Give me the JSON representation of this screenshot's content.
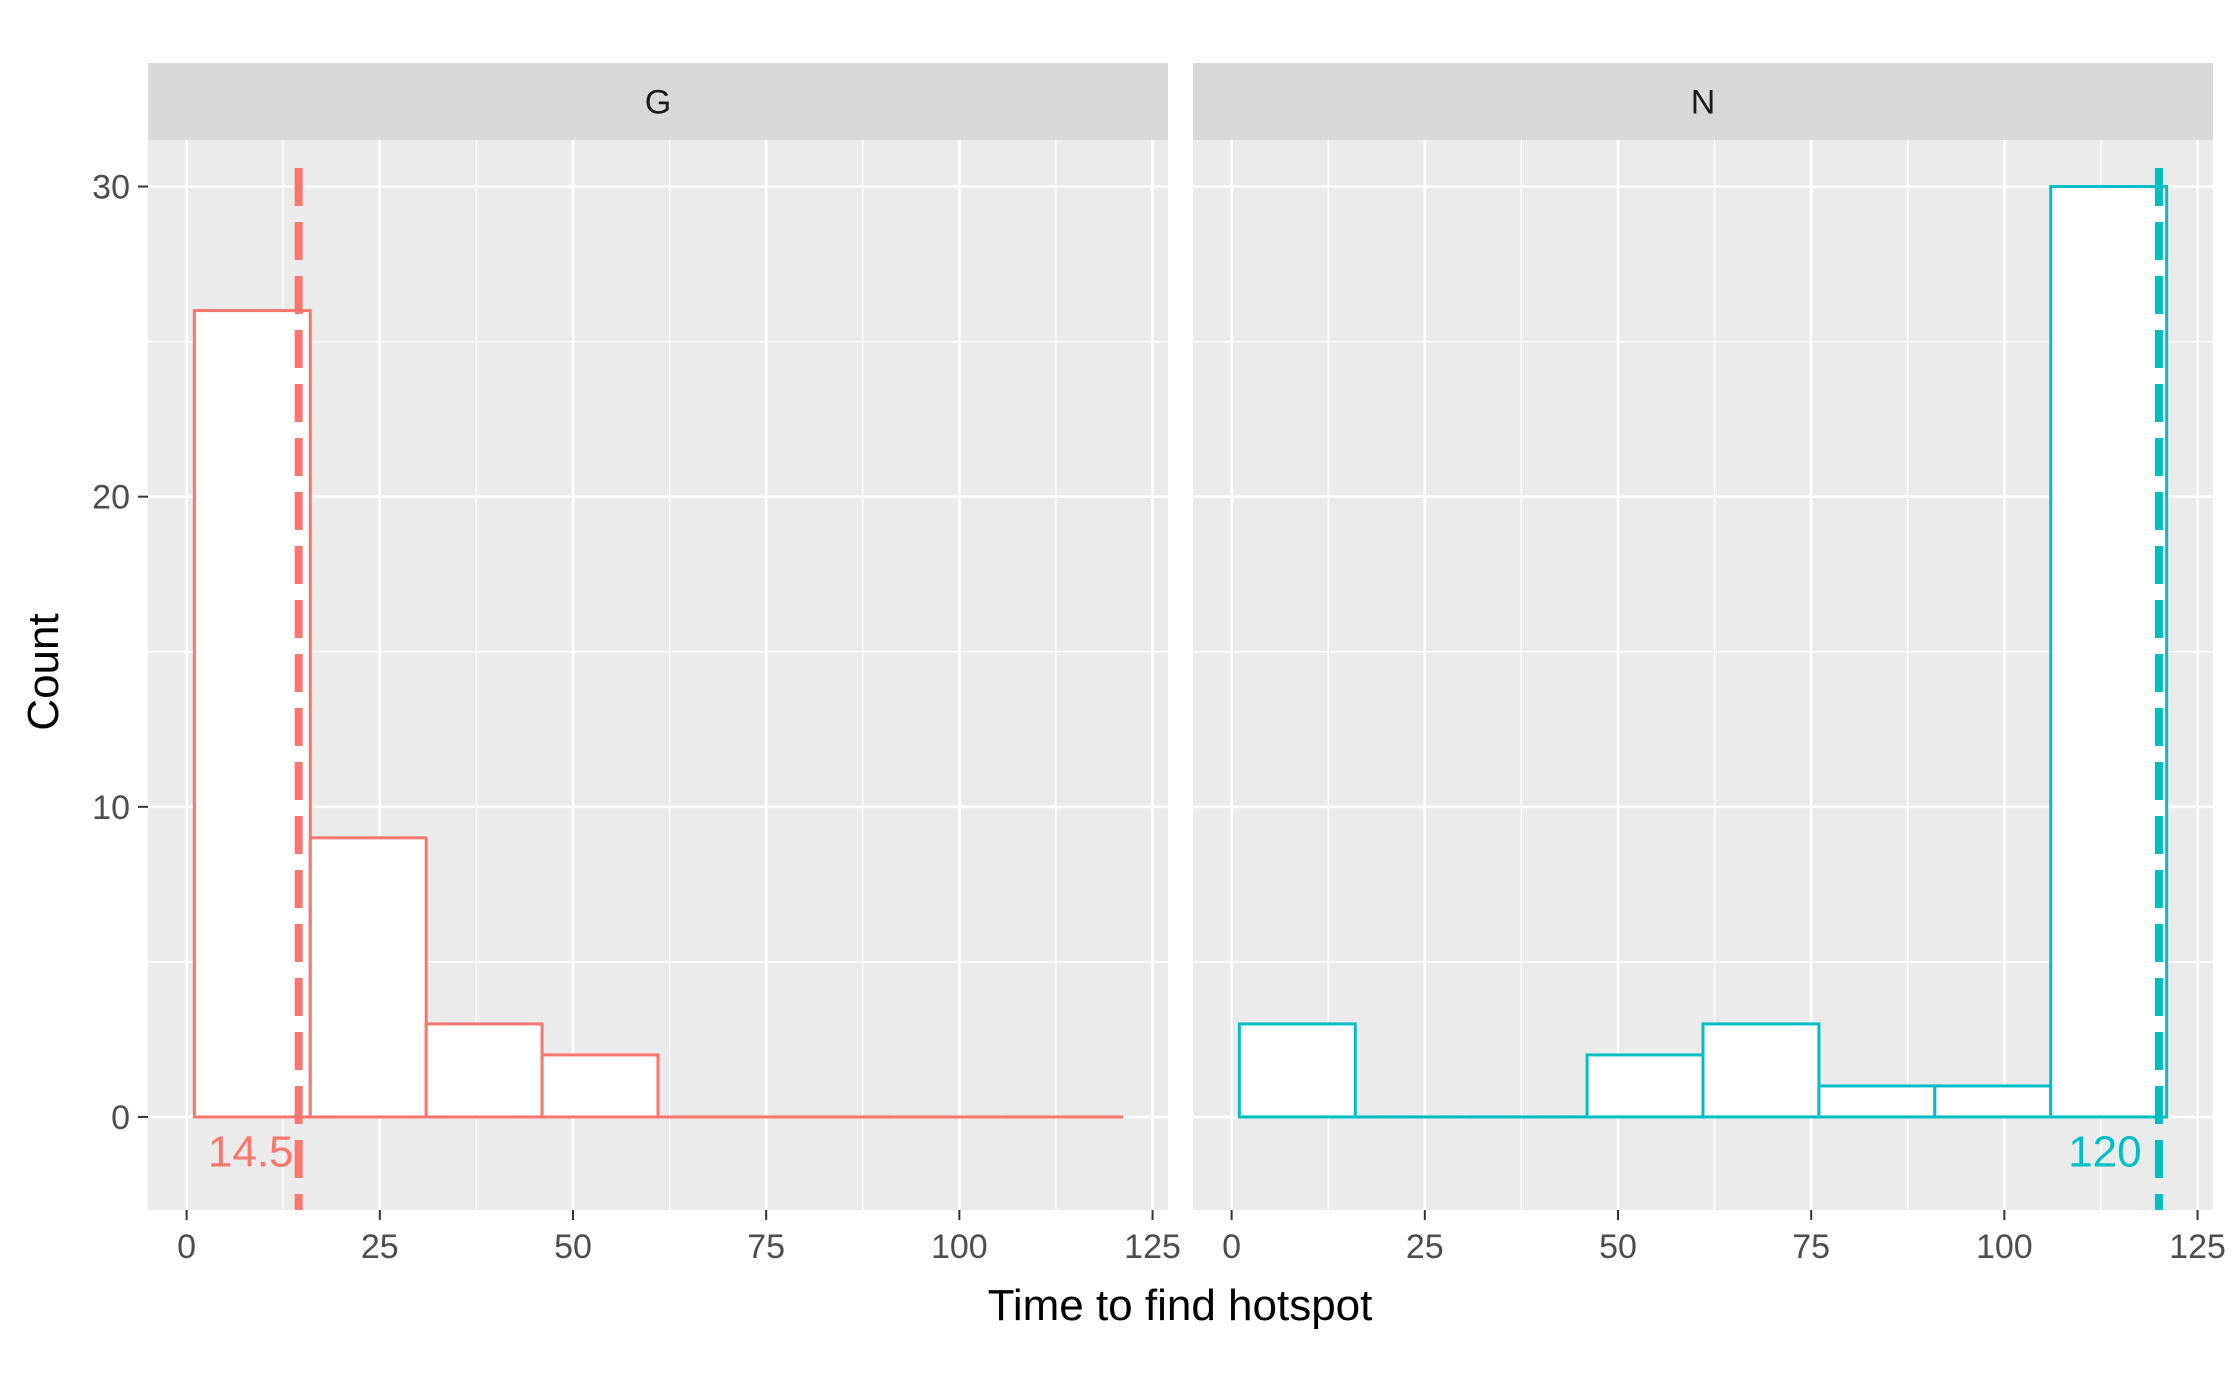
{
  "chart_data": {
    "type": "bar",
    "xlabel": "Time to find hotspot",
    "ylabel": "Count",
    "xlim": [
      -5,
      127
    ],
    "ylim": [
      -3,
      31.5
    ],
    "x_ticks": [
      0,
      25,
      50,
      75,
      100,
      125
    ],
    "x_tick_labels": [
      "0",
      "25",
      "50",
      "75",
      "100",
      "125"
    ],
    "y_ticks": [
      0,
      10,
      20,
      30
    ],
    "y_tick_labels": [
      "0",
      "10",
      "20",
      "30"
    ],
    "grid": true,
    "bin_edges": [
      1,
      16,
      31,
      46,
      61,
      76,
      91,
      106,
      121
    ],
    "panels": [
      {
        "strip_label": "G",
        "color": "#F8766D",
        "counts": [
          26,
          9,
          3,
          2,
          0,
          0,
          0,
          0
        ],
        "median": 14.5,
        "median_label": "14.5"
      },
      {
        "strip_label": "N",
        "color": "#00BFC4",
        "counts": [
          3,
          0,
          0,
          2,
          3,
          1,
          1,
          30
        ],
        "median": 120,
        "median_label": "120"
      }
    ]
  }
}
